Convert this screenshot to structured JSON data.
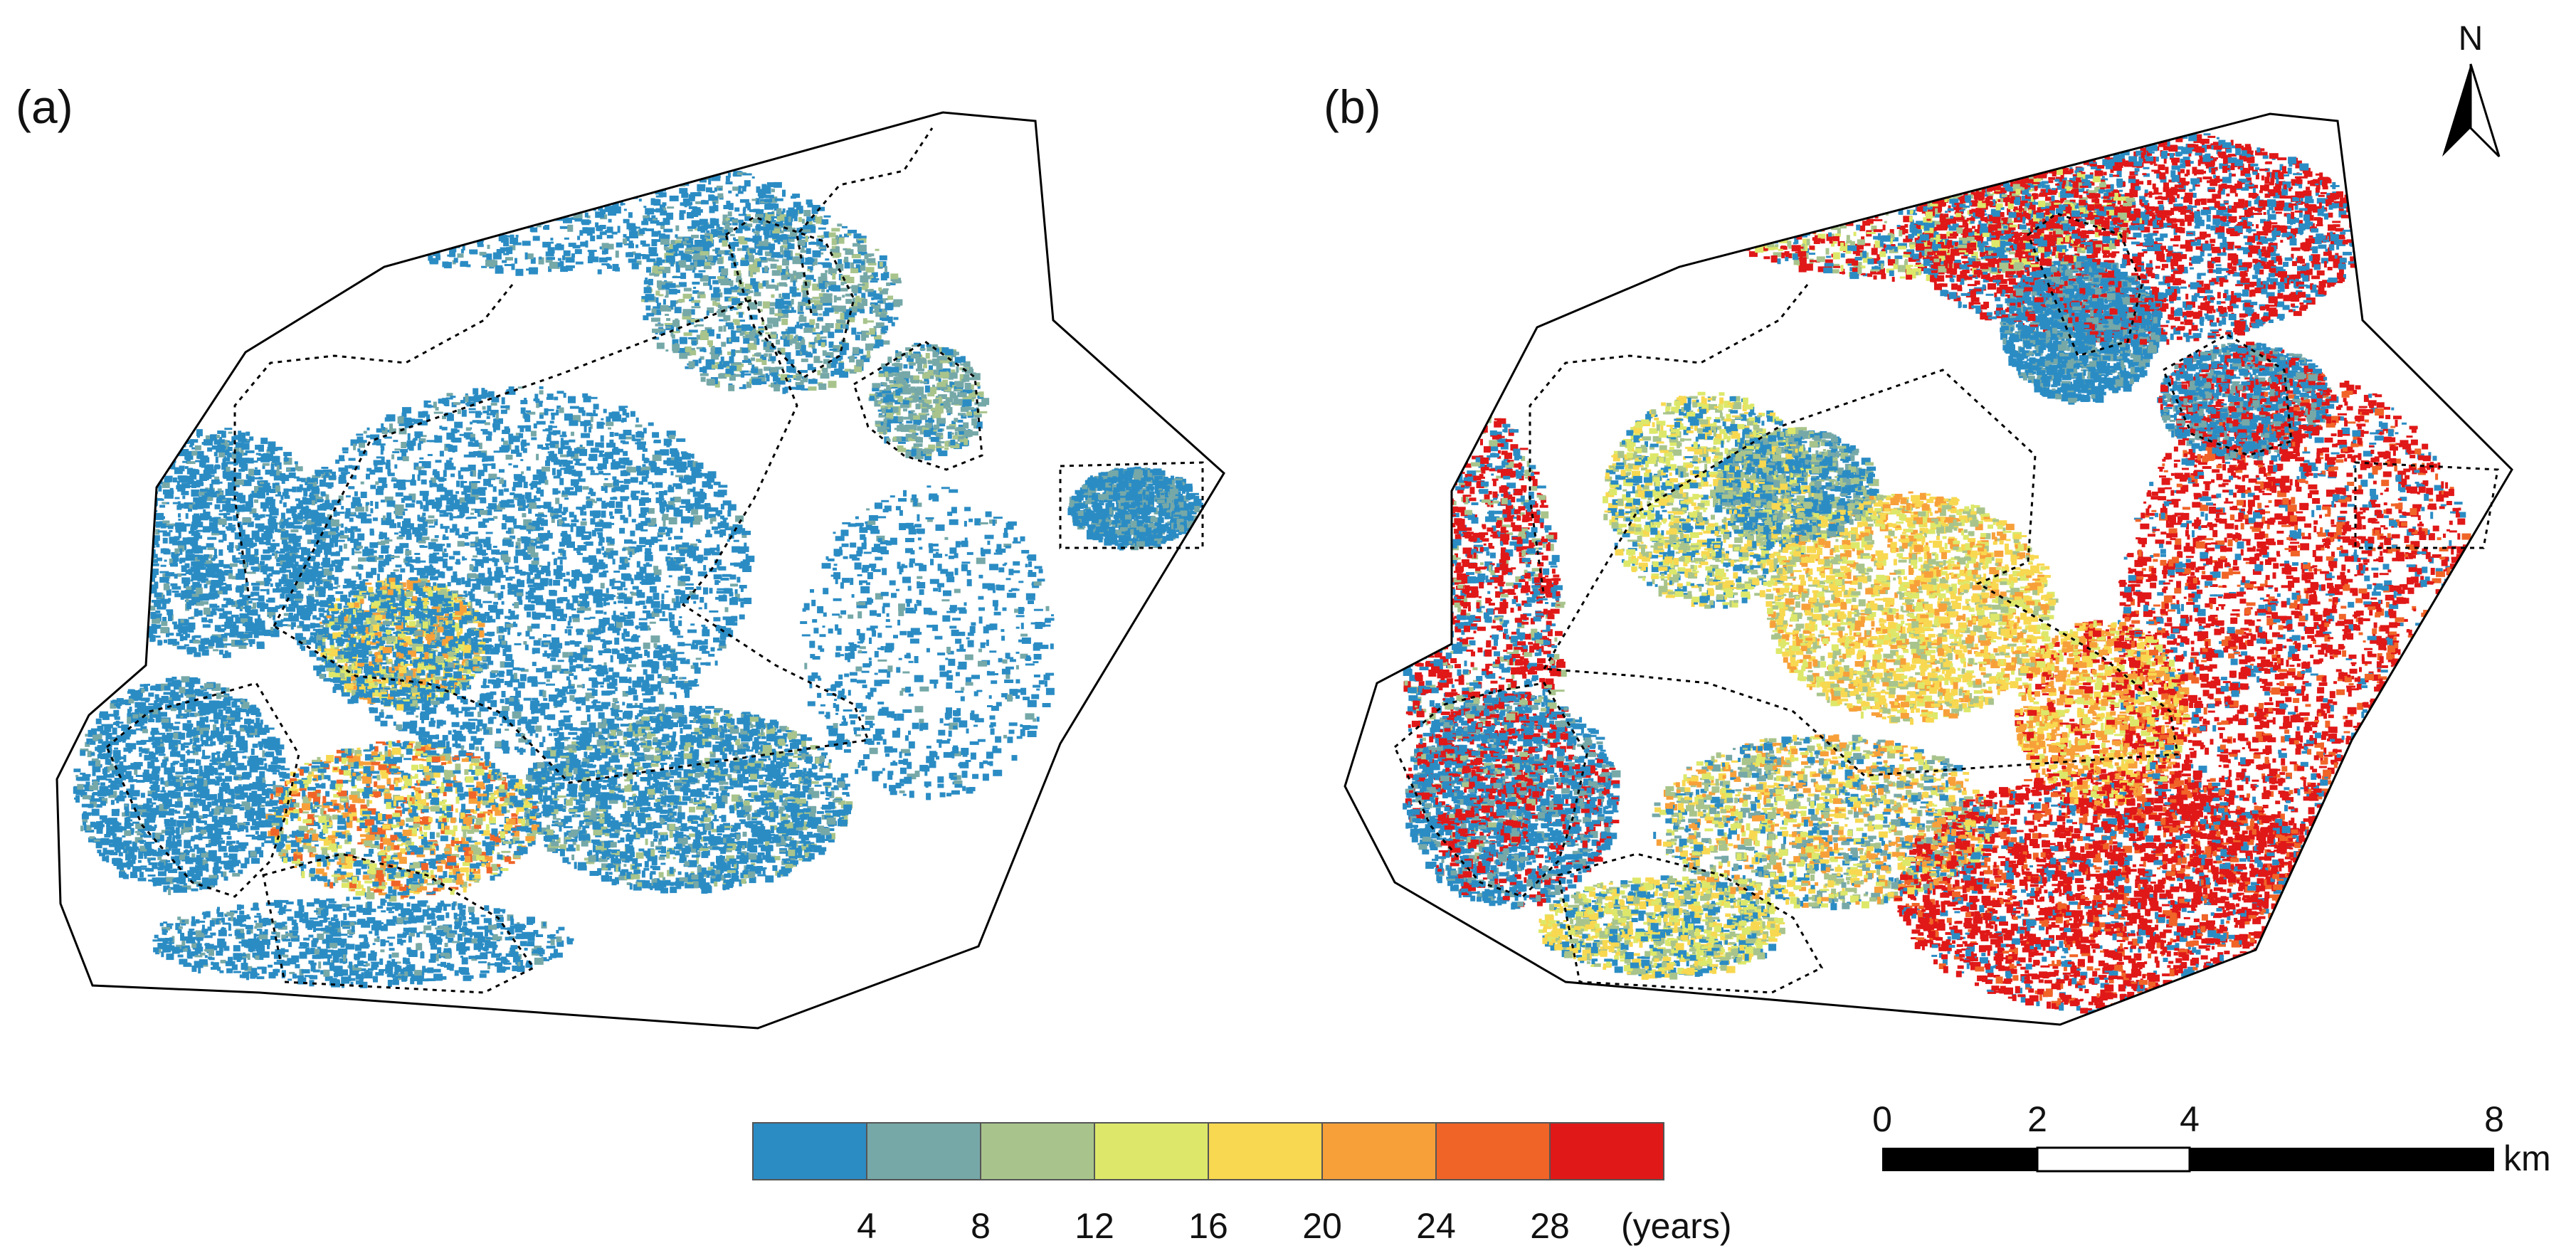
{
  "panels": [
    {
      "label": "(a)",
      "name": "panel-a"
    },
    {
      "label": "(b)",
      "name": "panel-b"
    }
  ],
  "legend": {
    "colors": [
      "#2b8cc4",
      "#76a8a8",
      "#a8c48c",
      "#dde86a",
      "#f8d850",
      "#f7a03a",
      "#f06428",
      "#e01818"
    ],
    "tick_labels": [
      "4",
      "8",
      "12",
      "16",
      "20",
      "24",
      "28"
    ],
    "unit": "(years)"
  },
  "scale_bar": {
    "ticks": [
      "0",
      "2",
      "4",
      "8"
    ],
    "unit": "km"
  },
  "north_arrow": {
    "label": "N"
  }
}
